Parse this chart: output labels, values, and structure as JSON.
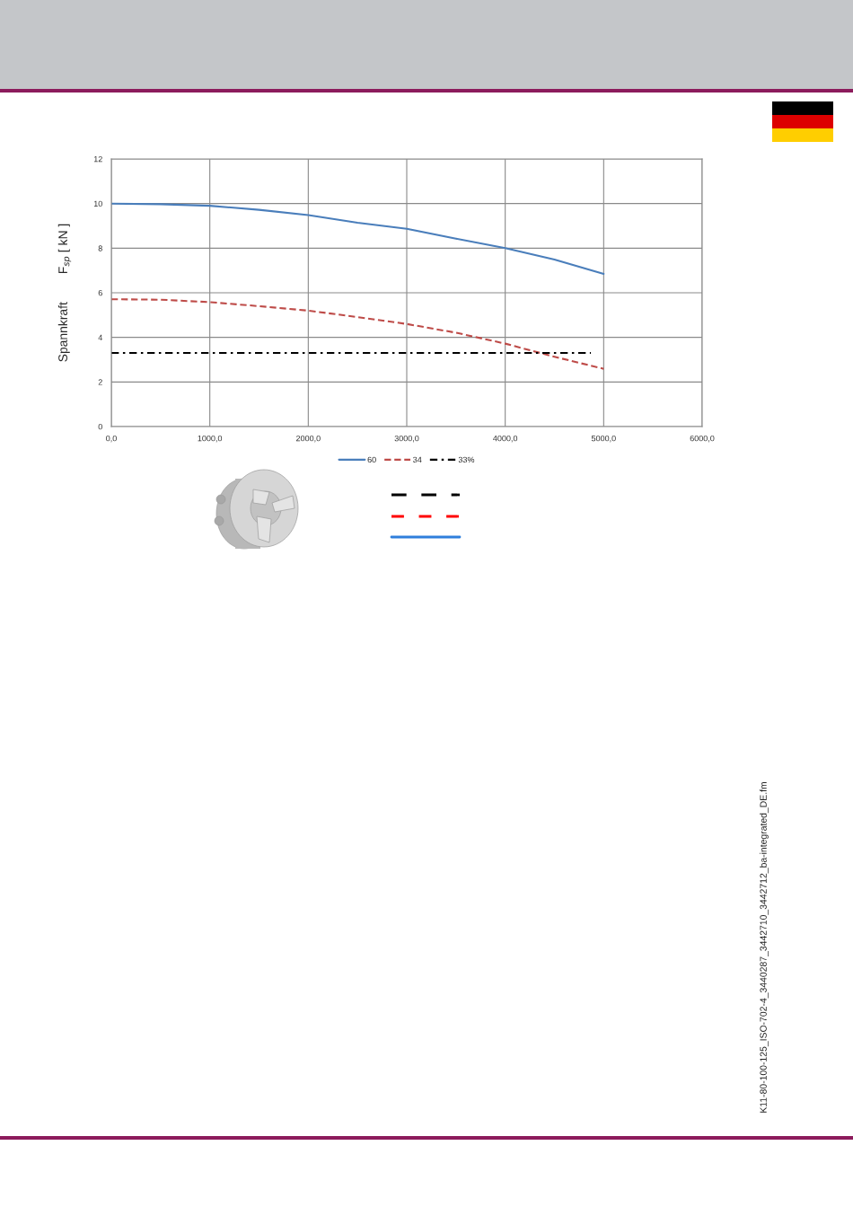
{
  "chart_data": {
    "type": "line",
    "ylabel": "Spannkraft        F$_{sp}$ [ kN ]",
    "x": [
      0,
      500,
      1000,
      1500,
      2000,
      2500,
      3000,
      3500,
      4000,
      4500,
      5000
    ],
    "series": [
      {
        "name": "60",
        "color": "#4a7ebb",
        "line_style": "solid",
        "values": [
          10.0,
          9.97,
          9.9,
          9.72,
          9.48,
          9.14,
          8.87,
          8.43,
          8.0,
          7.49,
          6.85
        ]
      },
      {
        "name": "34",
        "color": "#be4b48",
        "line_style": "dashed",
        "values": [
          5.71,
          5.69,
          5.58,
          5.4,
          5.2,
          4.91,
          4.6,
          4.21,
          3.72,
          3.13,
          2.59
        ]
      },
      {
        "name": "33%",
        "color": "#000000",
        "line_style": "dashdot",
        "x": [
          0,
          4870
        ],
        "values": [
          3.3,
          3.3
        ]
      }
    ],
    "xlim": [
      0,
      6000
    ],
    "xticks": [
      {
        "value": 0,
        "label": "0,0"
      },
      {
        "value": 1000,
        "label": "1000,0"
      },
      {
        "value": 2000,
        "label": "2000,0"
      },
      {
        "value": 3000,
        "label": "3000,0"
      },
      {
        "value": 4000,
        "label": "4000,0"
      },
      {
        "value": 5000,
        "label": "5000,0"
      },
      {
        "value": 6000,
        "label": "6000,0"
      }
    ],
    "ylim": [
      0,
      12
    ],
    "yticks": [
      0,
      2,
      4,
      6,
      8,
      10,
      12
    ],
    "grid": true,
    "legend": "bottom",
    "annotations": [
      "K11-80-100-125_ISO-702-4_3440287_3442710_3442712_ba-integrated_DE.fm"
    ]
  }
}
